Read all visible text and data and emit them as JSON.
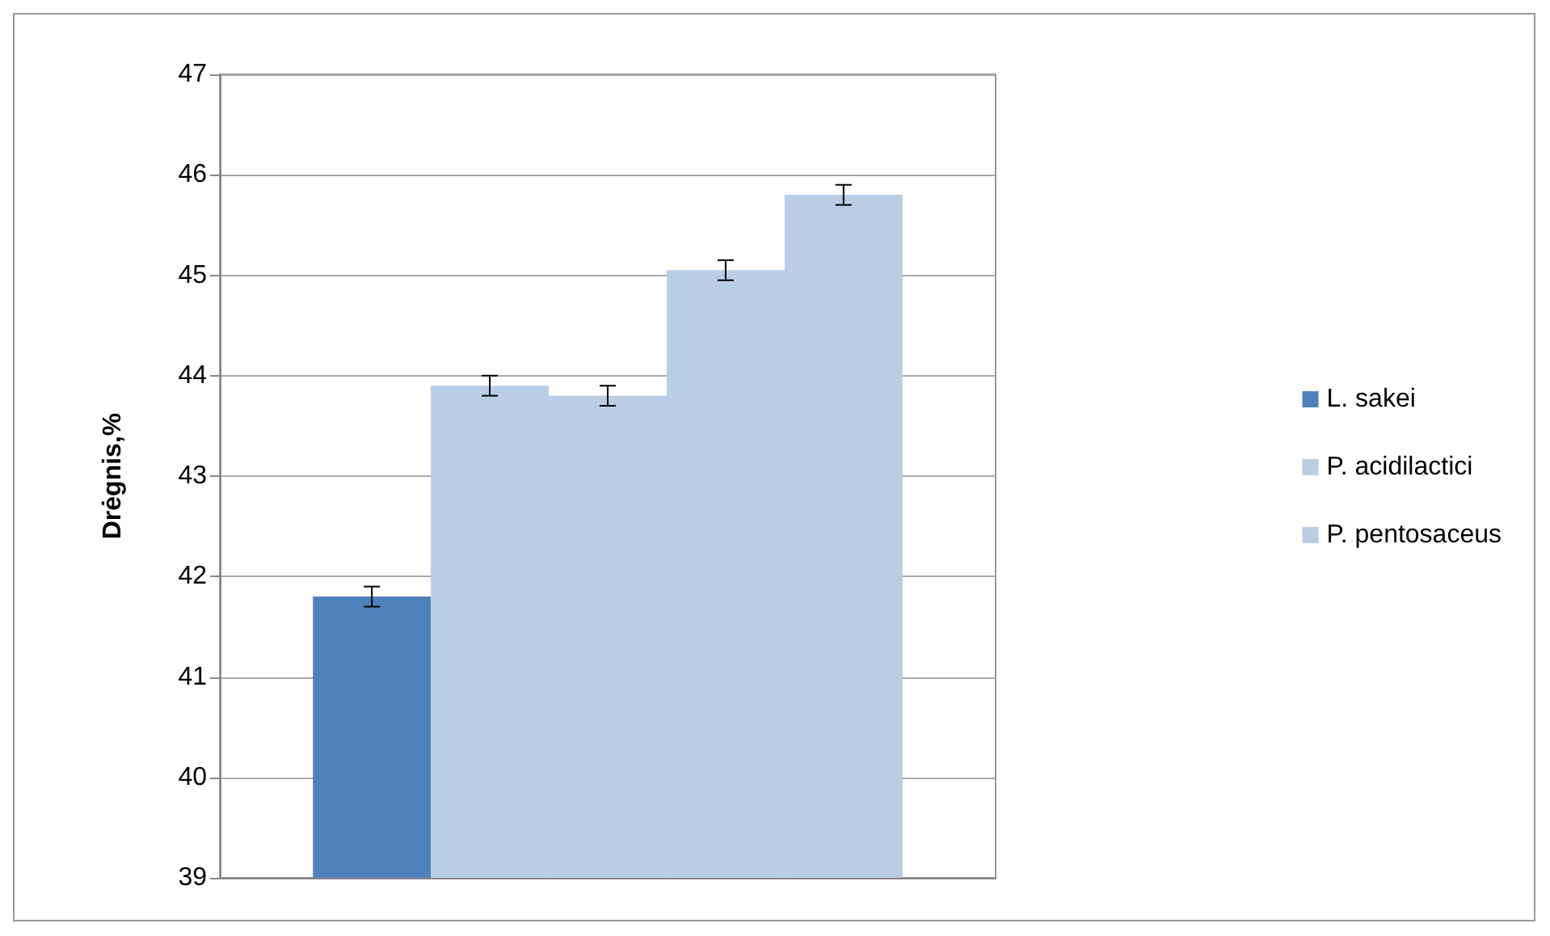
{
  "chart_data": {
    "type": "bar",
    "ylabel": "Drėgnis,%",
    "categories": [
      null
    ],
    "series": [
      {
        "name": "L. sakei",
        "color": "#4f81bd",
        "values": [
          41.8
        ],
        "errors": [
          0.1
        ]
      },
      {
        "name": "P. acidilactici",
        "color": "#b9cde5",
        "values": [
          43.9
        ],
        "errors": [
          0.1
        ]
      },
      {
        "name": "P. pentosaceus",
        "color": "#b9cde5",
        "values": [
          43.8
        ],
        "errors": [
          0.1
        ]
      },
      {
        "color": "#b9cde5",
        "values": [
          45.05
        ],
        "errors": [
          0.1
        ]
      },
      {
        "color": "#b9cde5",
        "values": [
          45.8
        ],
        "errors": [
          0.1
        ]
      }
    ],
    "ylim": [
      39,
      47
    ],
    "yticks": [
      39,
      40,
      41,
      42,
      43,
      44,
      45,
      46,
      47
    ],
    "grid": "y",
    "legend": "right"
  }
}
